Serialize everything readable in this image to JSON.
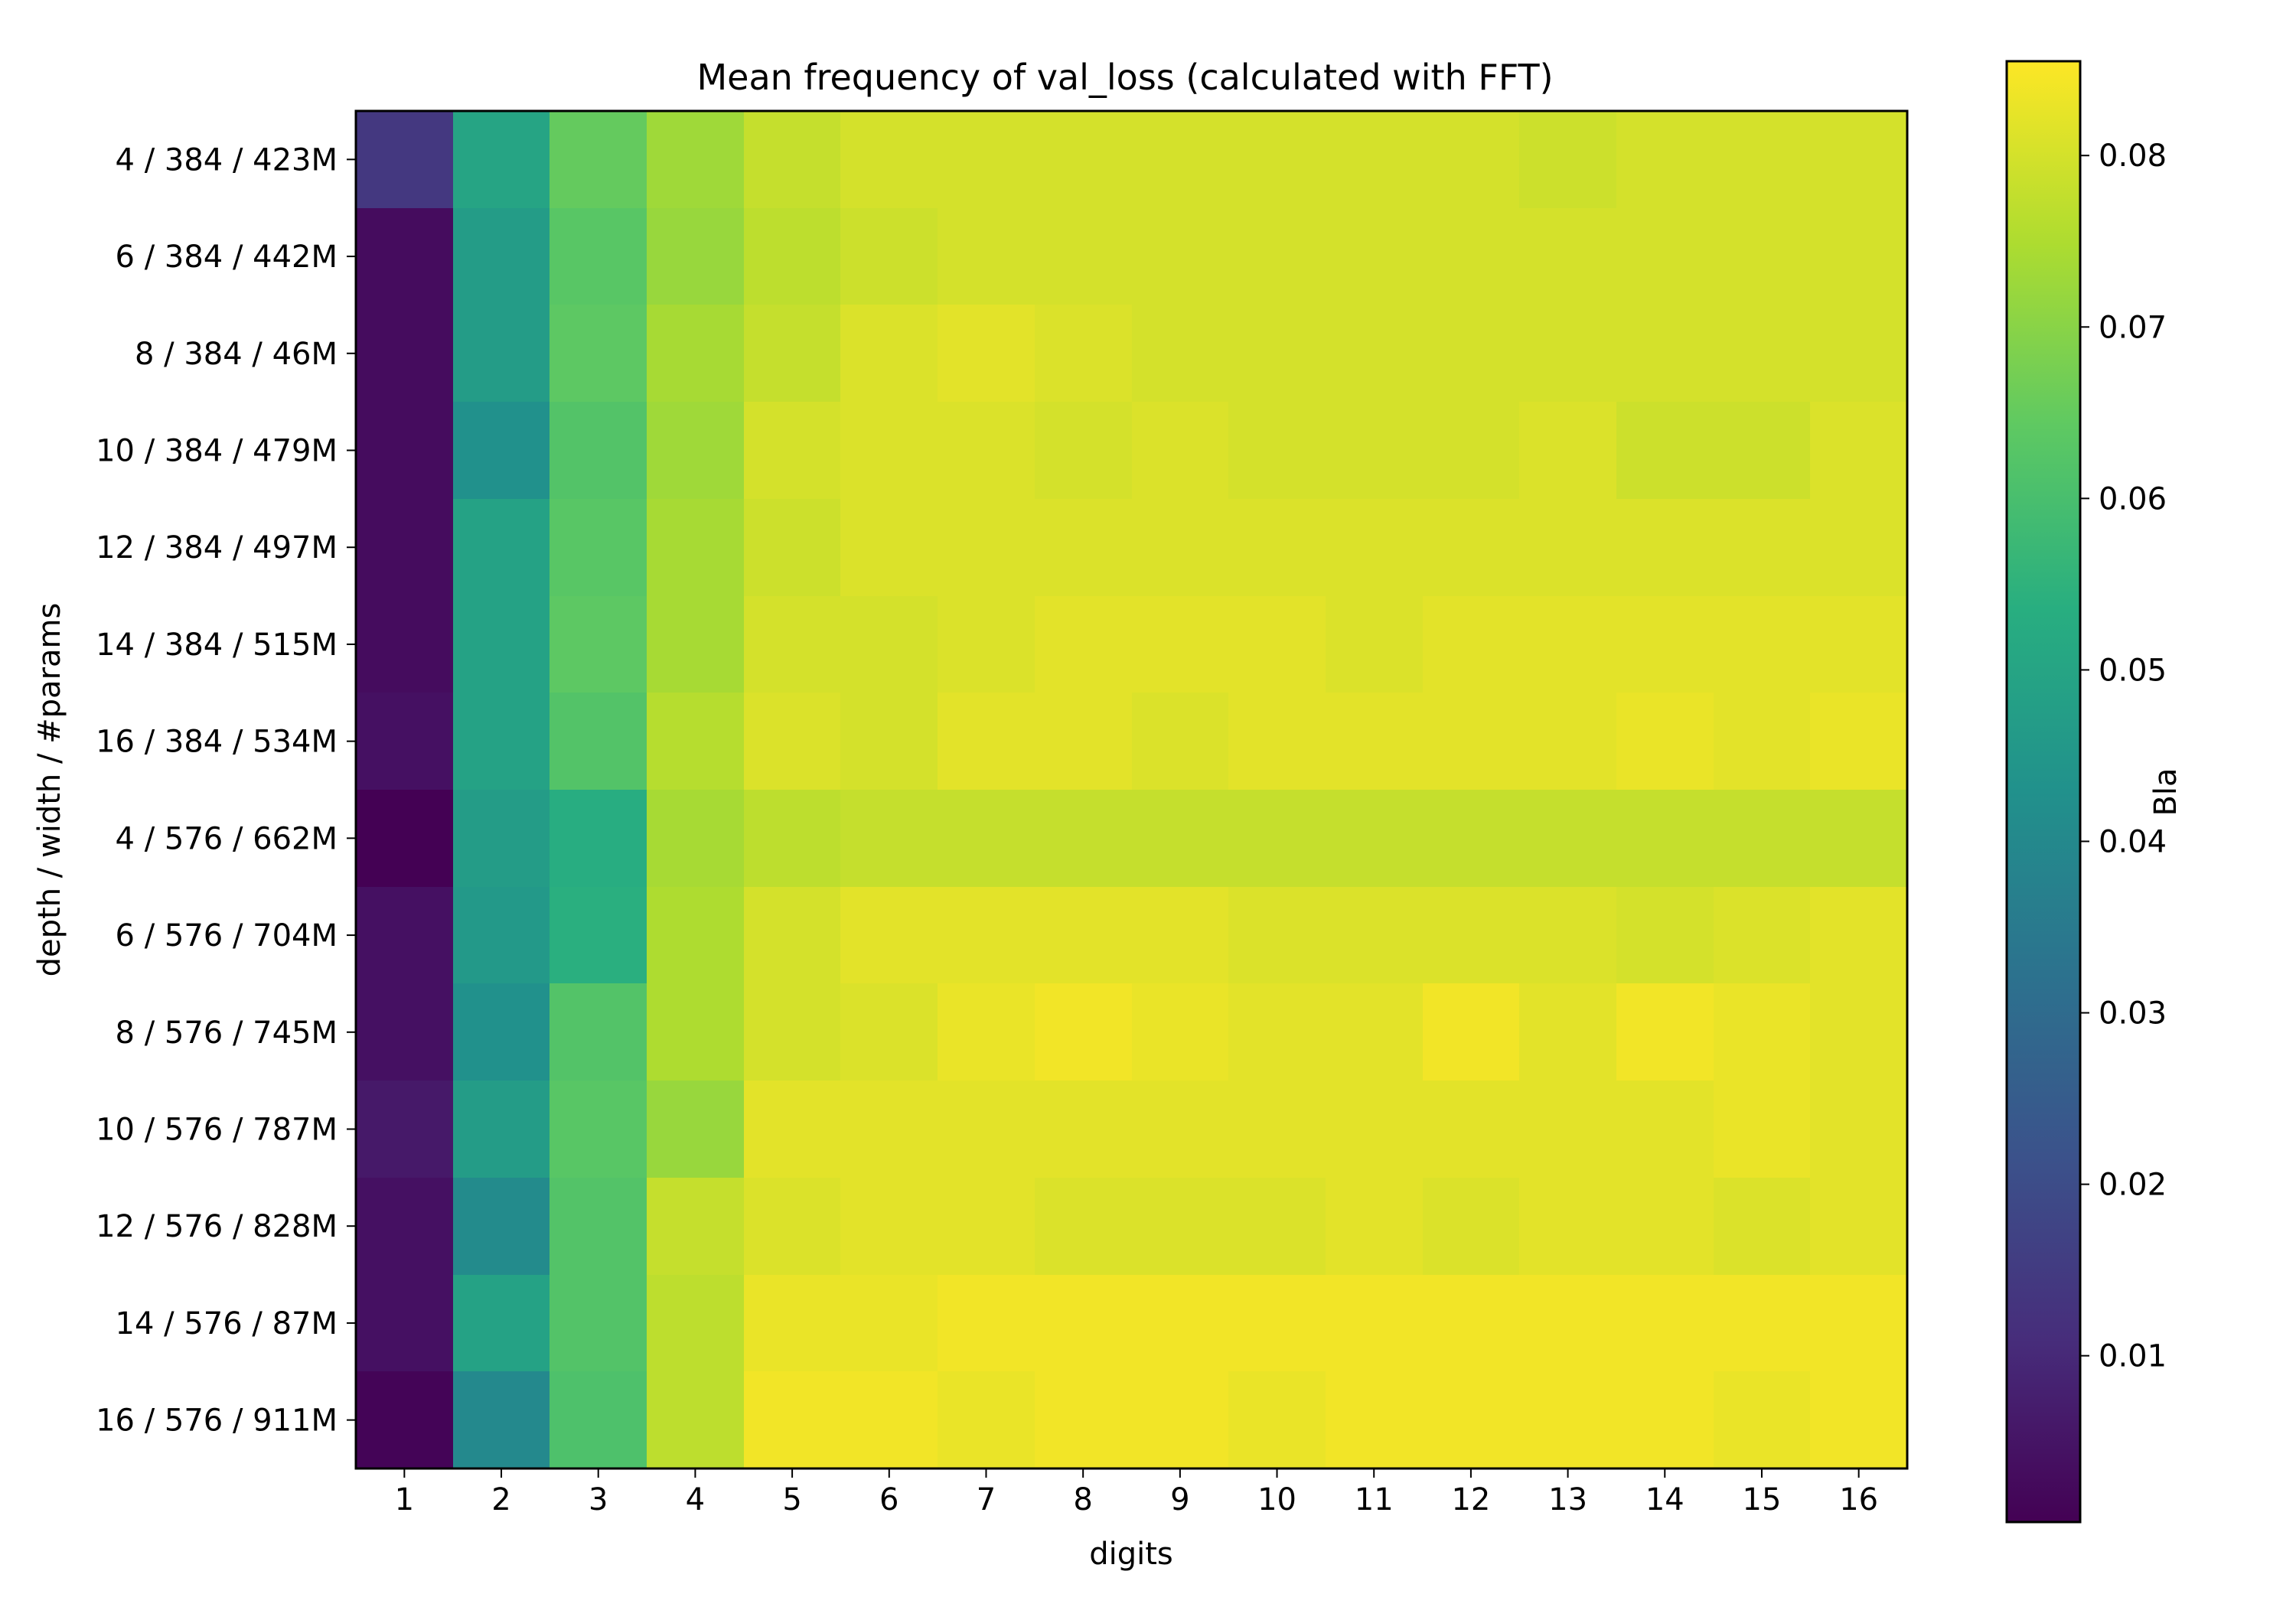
{
  "chart_data": {
    "type": "heatmap",
    "title": "Mean frequency of val_loss (calculated with FFT)",
    "xlabel": "digits",
    "ylabel": "depth / width / #params",
    "colorbar_label": "Bla",
    "colormap": "viridis",
    "colorbar_range": [
      0.0003,
      0.0855
    ],
    "colorbar_ticks": [
      0.01,
      0.02,
      0.03,
      0.04,
      0.05,
      0.06,
      0.07,
      0.08
    ],
    "colorbar_tick_labels": [
      "0.01",
      "0.02",
      "0.03",
      "0.04",
      "0.05",
      "0.06",
      "0.07",
      "0.08"
    ],
    "x_categories": [
      "1",
      "2",
      "3",
      "4",
      "5",
      "6",
      "7",
      "8",
      "9",
      "10",
      "11",
      "12",
      "13",
      "14",
      "15",
      "16"
    ],
    "y_categories": [
      "4 / 384 / 423M",
      "6 / 384 / 442M",
      "8 / 384 / 46M",
      "10 / 384 / 479M",
      "12 / 384 / 497M",
      "14 / 384 / 515M",
      "16 / 384 / 534M",
      "4 / 576 / 662M",
      "6 / 576 / 704M",
      "8 / 576 / 745M",
      "10 / 576 / 787M",
      "12 / 576 / 828M",
      "14 / 576 / 87M",
      "16 / 576 / 911M"
    ],
    "values": [
      [
        0.014,
        0.05,
        0.065,
        0.073,
        0.078,
        0.08,
        0.08,
        0.08,
        0.08,
        0.08,
        0.08,
        0.08,
        0.079,
        0.08,
        0.08,
        0.08
      ],
      [
        0.003,
        0.047,
        0.063,
        0.072,
        0.077,
        0.079,
        0.08,
        0.08,
        0.08,
        0.08,
        0.08,
        0.08,
        0.08,
        0.08,
        0.08,
        0.08
      ],
      [
        0.003,
        0.047,
        0.064,
        0.074,
        0.078,
        0.081,
        0.082,
        0.081,
        0.08,
        0.08,
        0.08,
        0.08,
        0.08,
        0.08,
        0.08,
        0.08
      ],
      [
        0.003,
        0.043,
        0.062,
        0.073,
        0.08,
        0.081,
        0.081,
        0.08,
        0.081,
        0.08,
        0.08,
        0.08,
        0.081,
        0.079,
        0.079,
        0.081
      ],
      [
        0.003,
        0.049,
        0.063,
        0.074,
        0.079,
        0.081,
        0.081,
        0.081,
        0.081,
        0.081,
        0.081,
        0.081,
        0.081,
        0.081,
        0.081,
        0.081
      ],
      [
        0.003,
        0.049,
        0.064,
        0.074,
        0.08,
        0.08,
        0.081,
        0.082,
        0.082,
        0.082,
        0.081,
        0.082,
        0.082,
        0.082,
        0.082,
        0.082
      ],
      [
        0.004,
        0.049,
        0.062,
        0.076,
        0.081,
        0.08,
        0.082,
        0.082,
        0.081,
        0.082,
        0.082,
        0.082,
        0.082,
        0.083,
        0.082,
        0.083
      ],
      [
        0.0003,
        0.047,
        0.053,
        0.074,
        0.077,
        0.078,
        0.078,
        0.078,
        0.078,
        0.078,
        0.078,
        0.078,
        0.078,
        0.078,
        0.078,
        0.078
      ],
      [
        0.004,
        0.046,
        0.054,
        0.075,
        0.08,
        0.082,
        0.082,
        0.082,
        0.082,
        0.081,
        0.081,
        0.081,
        0.081,
        0.08,
        0.081,
        0.082
      ],
      [
        0.004,
        0.043,
        0.062,
        0.075,
        0.08,
        0.081,
        0.083,
        0.084,
        0.083,
        0.082,
        0.082,
        0.084,
        0.082,
        0.084,
        0.083,
        0.082
      ],
      [
        0.006,
        0.047,
        0.063,
        0.072,
        0.082,
        0.082,
        0.082,
        0.082,
        0.082,
        0.082,
        0.082,
        0.082,
        0.082,
        0.082,
        0.083,
        0.082
      ],
      [
        0.004,
        0.041,
        0.062,
        0.078,
        0.081,
        0.082,
        0.082,
        0.081,
        0.081,
        0.081,
        0.082,
        0.081,
        0.082,
        0.082,
        0.081,
        0.082
      ],
      [
        0.004,
        0.049,
        0.062,
        0.077,
        0.083,
        0.083,
        0.084,
        0.084,
        0.084,
        0.084,
        0.084,
        0.084,
        0.084,
        0.084,
        0.084,
        0.084
      ],
      [
        0.001,
        0.04,
        0.061,
        0.077,
        0.084,
        0.084,
        0.083,
        0.084,
        0.084,
        0.083,
        0.084,
        0.084,
        0.084,
        0.084,
        0.083,
        0.084
      ]
    ]
  }
}
